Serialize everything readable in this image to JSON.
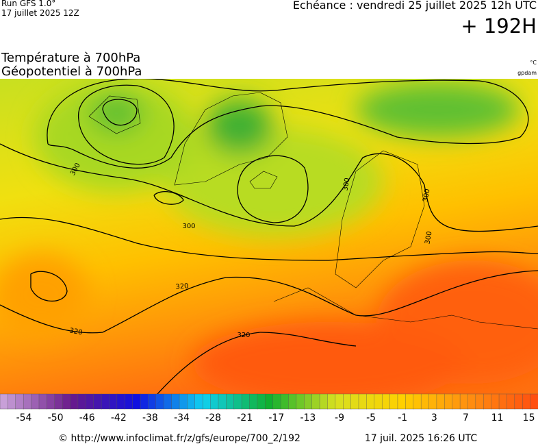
{
  "header": {
    "run": "Run GFS 1.0°",
    "run_date": "17 juillet 2025 12Z",
    "echeance": "Echéance : vendredi 25 juillet 2025 12h UTC",
    "lead": "+ 192H"
  },
  "titles": [
    "Température à 700hPa",
    "Géopotentiel à 700hPa"
  ],
  "units": [
    "°C",
    "gpdam"
  ],
  "contour_labels": [
    "300",
    "300",
    "300",
    "300",
    "300",
    "320",
    "320",
    "320"
  ],
  "colorbar": {
    "colors": [
      "#c8a0d8",
      "#6a1a8a",
      "#1010e0",
      "#10d0f0",
      "#10b030",
      "#d8e020",
      "#ffd000",
      "#ff9010",
      "#ff5010"
    ],
    "ticks": [
      "-54",
      "-50",
      "-46",
      "-42",
      "-38",
      "-34",
      "-28",
      "-21",
      "-17",
      "-13",
      "-9",
      "-5",
      "-1",
      "3",
      "7",
      "11",
      "15"
    ]
  },
  "footer": {
    "url": "© http://www.infoclimat.fr/z/gfs/europe/700_2/192",
    "date": "17 juil. 2025 16:26 UTC"
  }
}
